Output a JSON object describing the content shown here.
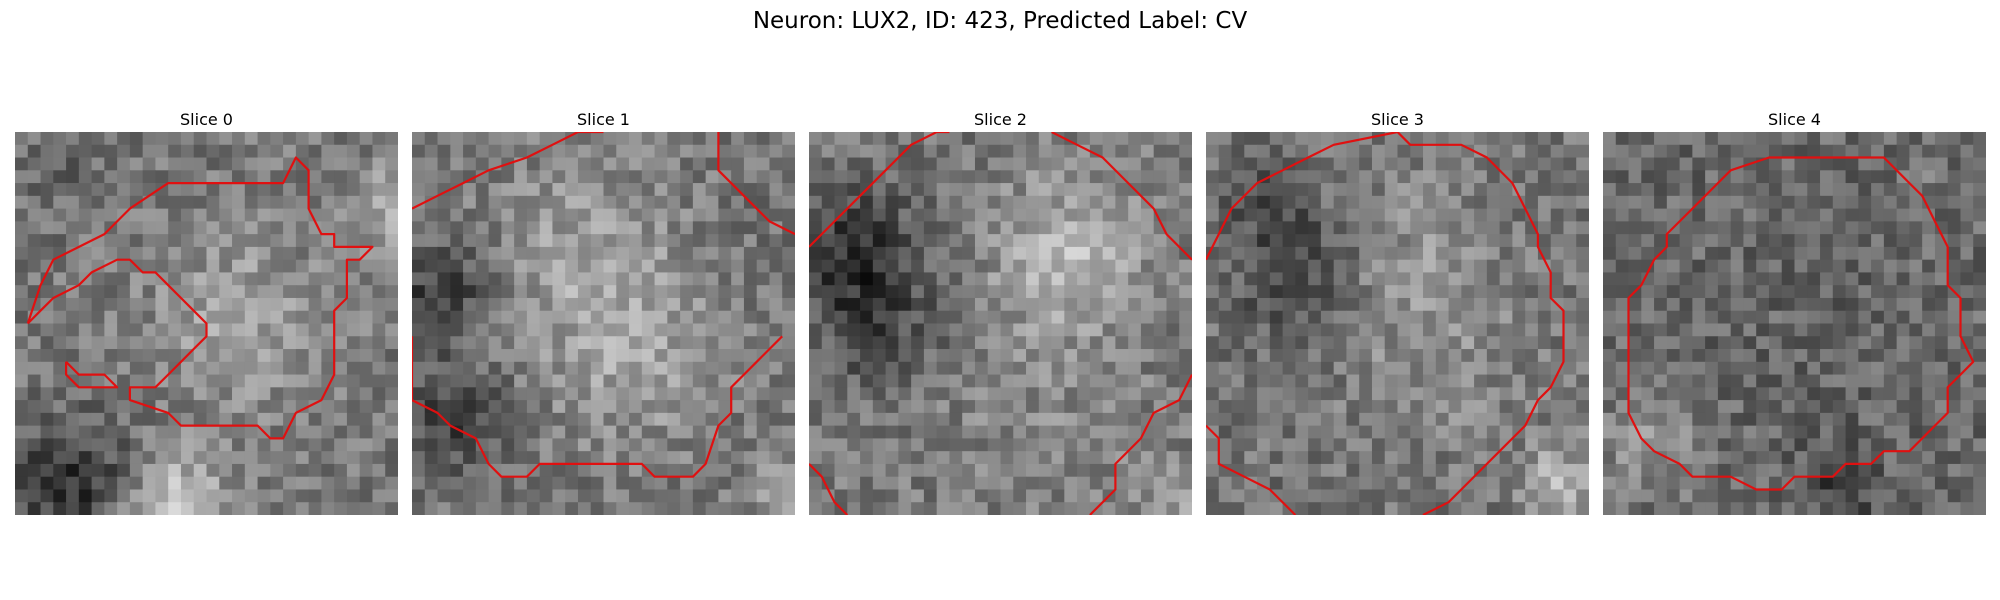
{
  "figure": {
    "title": "Neuron: LUX2, ID: 423, Predicted Label: CV",
    "contour_color": "#e01010"
  },
  "panels": [
    {
      "title": "Slice 0"
    },
    {
      "title": "Slice 1"
    },
    {
      "title": "Slice 2"
    },
    {
      "title": "Slice 3"
    },
    {
      "title": "Slice 4"
    }
  ]
}
